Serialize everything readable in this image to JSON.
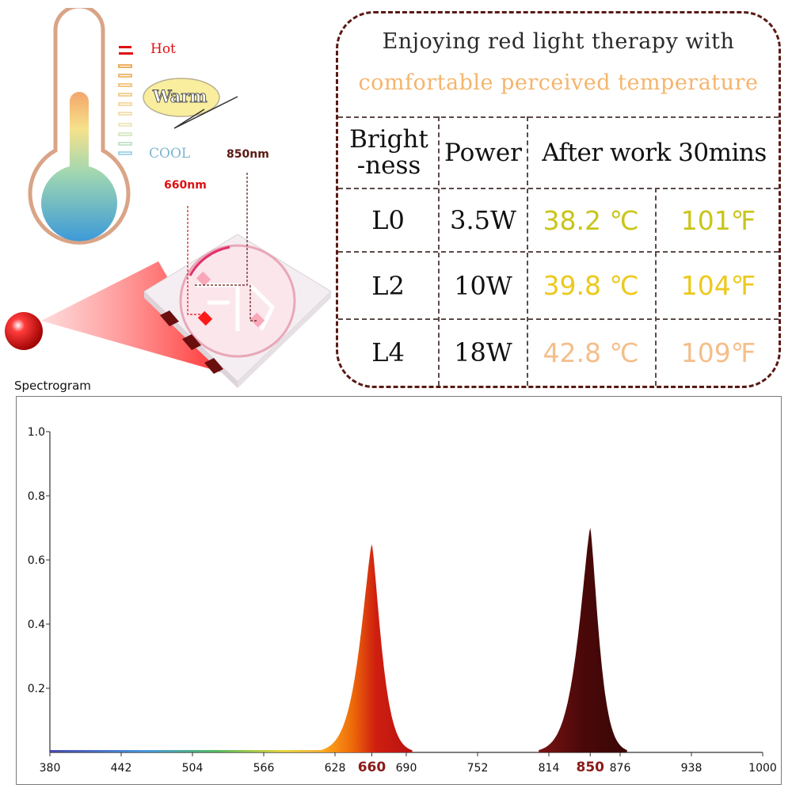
{
  "thermometer": {
    "levels": {
      "hot": "Hot",
      "warm": "Warm",
      "cool": "COOL"
    }
  },
  "led": {
    "label_660": "660nm",
    "label_850": "850nm"
  },
  "card": {
    "title_line1": "Enjoying red light therapy with",
    "title_line2": "comfortable perceived temperature",
    "headers": {
      "brightness_1": "Bright",
      "brightness_2": "-ness",
      "power": "Power",
      "after": "After work 30mins"
    },
    "rows": [
      {
        "level": "L0",
        "power": "3.5W",
        "celsius": "38.2 ℃",
        "fahrenheit": "101℉",
        "color": "#c9c51a"
      },
      {
        "level": "L2",
        "power": "10W",
        "celsius": "39.8 ℃",
        "fahrenheit": "104℉",
        "color": "#ecc91c"
      },
      {
        "level": "L4",
        "power": "18W",
        "celsius": "42.8 ℃",
        "fahrenheit": "109℉",
        "color": "#f4be8a"
      }
    ]
  },
  "chart_data": {
    "type": "area",
    "title": "Spectrogram",
    "xlabel": "",
    "ylabel": "",
    "xlim": [
      380,
      1000
    ],
    "ylim": [
      0,
      1.0
    ],
    "x_ticks": [
      380,
      442,
      504,
      566,
      628,
      660,
      690,
      752,
      814,
      850,
      876,
      938,
      1000
    ],
    "highlighted_ticks": [
      660,
      850
    ],
    "y_ticks": [
      0.2,
      0.4,
      0.6,
      0.8,
      1.0
    ],
    "y_tick_labels": [
      "0.2",
      "0.4",
      "0.6",
      "0.8",
      "1.0"
    ],
    "series": [
      {
        "name": "660nm peak",
        "peak_x": 660,
        "peak_y": 0.65,
        "color": "#d02a12"
      },
      {
        "name": "850nm peak",
        "peak_x": 850,
        "peak_y": 0.7,
        "color": "#4a0808"
      }
    ],
    "baseline": 0.0
  },
  "colors": {
    "accent_red": "#e01010",
    "card_border": "#5a1a14",
    "orange_text": "#f5b56c",
    "dark_red_label": "#5a1a14"
  }
}
